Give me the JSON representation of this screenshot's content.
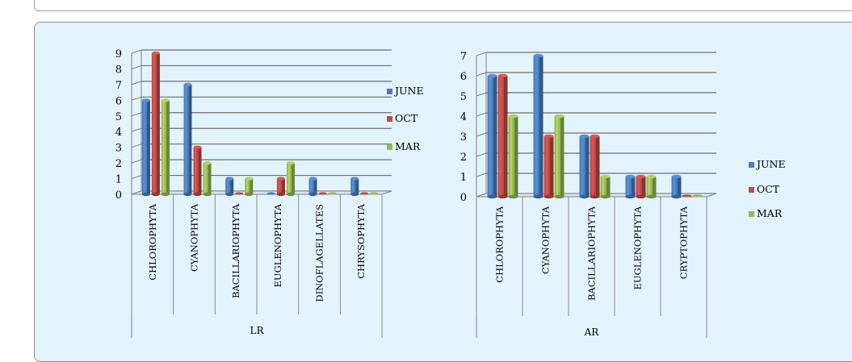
{
  "chart_data": [
    {
      "type": "bar",
      "categories": [
        "CHLOROPHYTA",
        "CYANOPHYTA",
        "BACILLARIOPHYTA",
        "EUGLENOPHYTA",
        "DINOFLAGELLATES",
        "CHRYSOPHYTA"
      ],
      "series": [
        {
          "name": "JUNE",
          "values": [
            6,
            7,
            1,
            0,
            1,
            1
          ],
          "color": "#4a7ebb"
        },
        {
          "name": "OCT",
          "values": [
            9,
            3,
            0,
            1,
            0,
            0
          ],
          "color": "#be4b48"
        },
        {
          "name": "MAR",
          "values": [
            6,
            2,
            1,
            2,
            0,
            0
          ],
          "color": "#98b954"
        }
      ],
      "xlabel": "LR",
      "ylim": [
        0,
        9
      ],
      "yticks": [
        0,
        1,
        2,
        3,
        4,
        5,
        6,
        7,
        8,
        9
      ],
      "grid": true,
      "legend": "right"
    },
    {
      "type": "bar",
      "categories": [
        "CHLOROPHYTA",
        "CYANOPHYTA",
        "BACILLARIOPHYTA",
        "EUGLENOPHYTA",
        "CRYPTOPHYTA"
      ],
      "series": [
        {
          "name": "JUNE",
          "values": [
            6,
            7,
            3,
            1,
            1
          ],
          "color": "#4a7ebb"
        },
        {
          "name": "OCT",
          "values": [
            6,
            3,
            3,
            1,
            0
          ],
          "color": "#be4b48"
        },
        {
          "name": "MAR",
          "values": [
            4,
            4,
            1,
            1,
            0
          ],
          "color": "#98b954"
        }
      ],
      "xlabel": "AR",
      "ylim": [
        0,
        7
      ],
      "yticks": [
        0,
        1,
        2,
        3,
        4,
        5,
        6,
        7
      ],
      "grid": true,
      "legend": "right"
    }
  ]
}
